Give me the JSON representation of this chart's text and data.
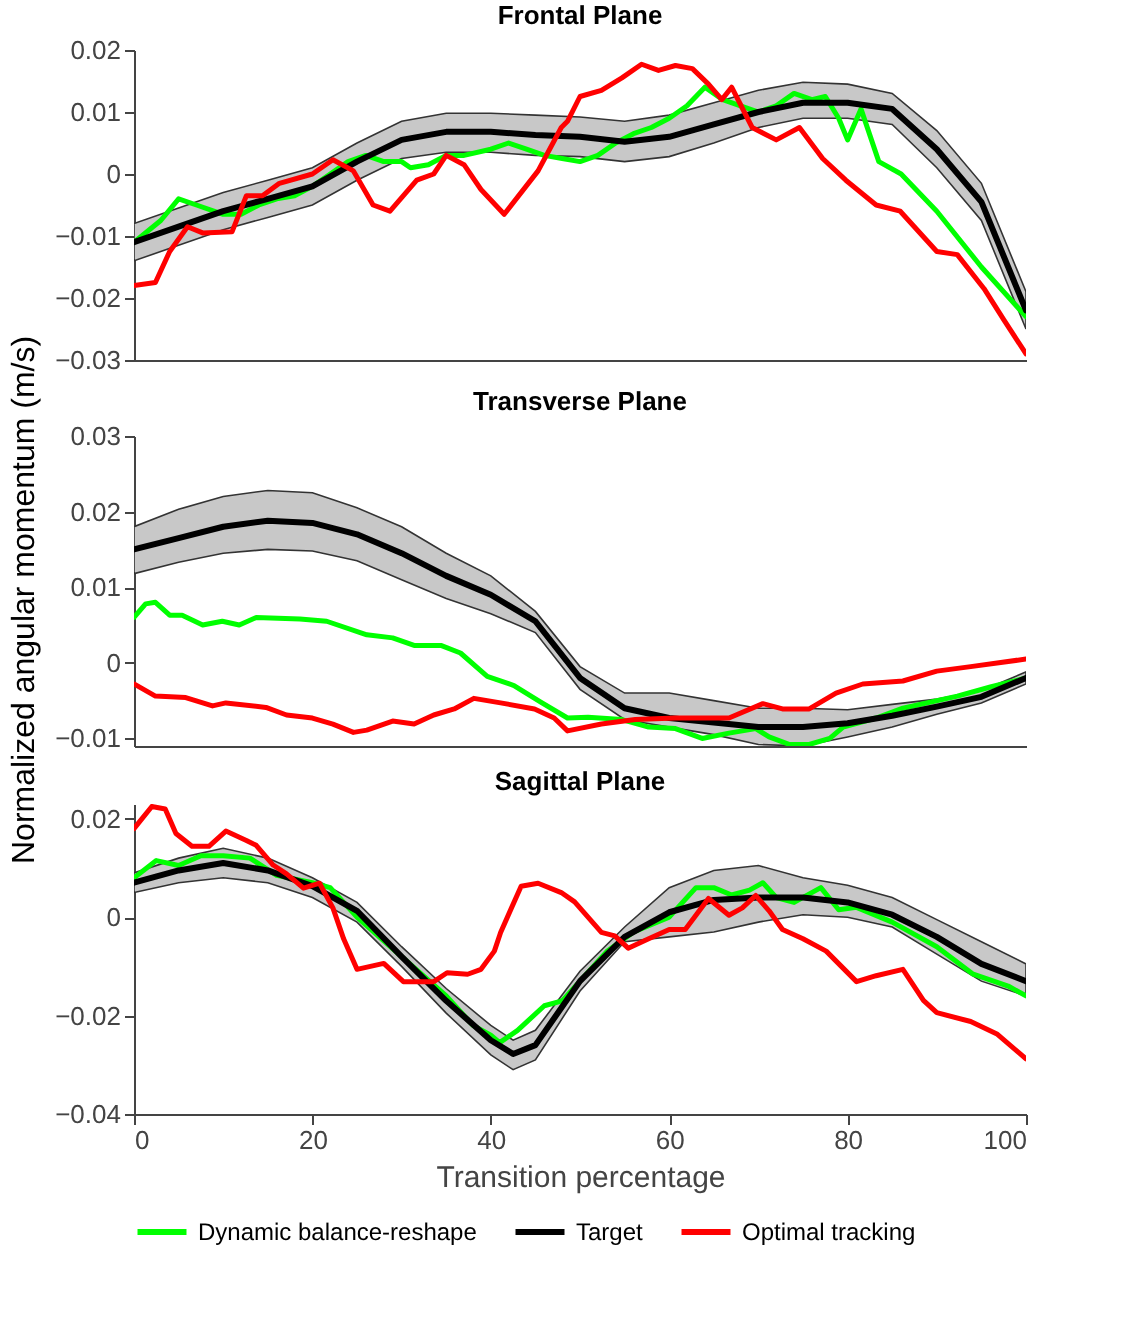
{
  "chart_data": [
    {
      "type": "line",
      "title": "Frontal Plane",
      "xlim": [
        0,
        100
      ],
      "xticks": [
        0,
        20,
        40,
        60,
        80,
        100
      ],
      "ylim": [
        -0.03,
        0.02
      ],
      "yticks": [
        -0.03,
        -0.02,
        -0.01,
        0,
        0.01,
        0.02
      ],
      "tick_labels": "y",
      "series": [
        {
          "color": "#00ff00",
          "x": [
            0,
            3,
            5,
            7,
            10,
            12,
            14,
            16,
            18,
            20,
            22,
            24,
            26,
            28,
            30,
            31,
            33,
            35,
            37,
            40,
            42,
            44,
            46,
            48,
            50,
            52,
            54,
            56,
            58,
            60,
            62,
            64,
            66,
            68,
            70,
            72,
            74,
            76,
            77.5,
            79,
            80,
            81.5,
            83.5,
            86,
            90,
            95,
            100
          ],
          "values": [
            -0.011,
            -0.0075,
            -0.004,
            -0.005,
            -0.0065,
            -0.0065,
            -0.005,
            -0.004,
            -0.0035,
            -0.002,
            0.0,
            0.002,
            0.003,
            0.002,
            0.002,
            0.001,
            0.0015,
            0.003,
            0.003,
            0.004,
            0.005,
            0.004,
            0.003,
            0.0025,
            0.002,
            0.003,
            0.005,
            0.0065,
            0.0075,
            0.009,
            0.011,
            0.014,
            0.012,
            0.011,
            0.01,
            0.011,
            0.013,
            0.012,
            0.0125,
            0.009,
            0.0055,
            0.0105,
            0.002,
            0.0,
            -0.006,
            -0.015,
            -0.023
          ]
        },
        {
          "color": "#000000",
          "x": [
            0,
            5,
            10,
            15,
            20,
            25,
            30,
            35,
            40,
            45,
            50,
            55,
            60,
            65,
            70,
            75,
            80,
            85,
            90,
            95,
            100
          ],
          "values": [
            -0.011,
            -0.0085,
            -0.006,
            -0.004,
            -0.002,
            0.002,
            0.0055,
            0.0068,
            0.0068,
            0.0063,
            0.006,
            0.0052,
            0.006,
            0.008,
            0.01,
            0.0115,
            0.0115,
            0.0105,
            0.004,
            -0.0045,
            -0.022
          ],
          "lower": [
            -0.014,
            -0.0115,
            -0.009,
            -0.007,
            -0.005,
            -0.001,
            0.0025,
            0.0035,
            0.0035,
            0.003,
            0.0028,
            0.002,
            0.0028,
            0.005,
            0.0075,
            0.009,
            0.009,
            0.008,
            0.001,
            -0.0075,
            -0.025
          ],
          "upper": [
            -0.008,
            -0.0055,
            -0.003,
            -0.001,
            0.001,
            0.005,
            0.0085,
            0.0098,
            0.0098,
            0.0095,
            0.0092,
            0.0085,
            0.0095,
            0.0115,
            0.0135,
            0.0148,
            0.0145,
            0.013,
            0.007,
            -0.0015,
            -0.019
          ]
        },
        {
          "color": "#ff0000",
          "x": [
            0,
            2.4,
            4,
            6,
            7.7,
            11,
            12.6,
            14.4,
            16.3,
            20,
            22.3,
            24.6,
            26.8,
            28.7,
            31.7,
            33.6,
            35,
            37,
            38.9,
            41.5,
            45.3,
            47.9,
            48.6,
            50,
            52.4,
            54.7,
            56.9,
            58.8,
            60.7,
            62.6,
            64.4,
            65.9,
            67,
            69.3,
            72,
            74.6,
            77.2,
            79.8,
            83.2,
            85.9,
            90,
            92.3,
            95.3,
            97.5,
            100
          ],
          "values": [
            -0.018,
            -0.0175,
            -0.0125,
            -0.0085,
            -0.0095,
            -0.0093,
            -0.0035,
            -0.0035,
            -0.0015,
            0.0,
            0.0023,
            0.0005,
            -0.005,
            -0.006,
            -0.001,
            0.0,
            0.003,
            0.0015,
            -0.0025,
            -0.0065,
            0.0005,
            0.0075,
            0.0085,
            0.0125,
            0.0135,
            0.0155,
            0.0177,
            0.0167,
            0.0175,
            0.017,
            0.0145,
            0.012,
            0.014,
            0.0075,
            0.0055,
            0.0075,
            0.0025,
            -0.001,
            -0.005,
            -0.006,
            -0.0125,
            -0.013,
            -0.0185,
            -0.0235,
            -0.029
          ]
        }
      ]
    },
    {
      "type": "line",
      "title": "Transverse Plane",
      "ylabel": "Normalized angular momentum (m/s)",
      "xlim": [
        0,
        100
      ],
      "xticks": [
        0,
        20,
        40,
        60,
        80,
        100
      ],
      "ylim": [
        -0.011,
        0.03
      ],
      "yticks": [
        -0.01,
        0,
        0.01,
        0.02,
        0.03
      ],
      "tick_labels": "y",
      "series": [
        {
          "color": "#00ff00",
          "x": [
            0,
            1.3,
            2.4,
            4,
            5.4,
            7.7,
            9.9,
            11.8,
            13.7,
            18.6,
            21.6,
            26.1,
            29,
            31.4,
            34.4,
            36.6,
            39.6,
            42.6,
            45.6,
            48.6,
            50.9,
            54.7,
            57.7,
            60.7,
            63.7,
            66.7,
            69.7,
            71.2,
            73.5,
            75.7,
            78,
            79.5,
            83.2,
            86.2,
            92.3,
            96,
            100
          ],
          "values": [
            0.006,
            0.0078,
            0.008,
            0.0063,
            0.0063,
            0.005,
            0.0055,
            0.005,
            0.006,
            0.0058,
            0.0055,
            0.0037,
            0.0033,
            0.0023,
            0.0023,
            0.0013,
            -0.0018,
            -0.003,
            -0.0052,
            -0.0073,
            -0.0072,
            -0.0075,
            -0.0085,
            -0.0087,
            -0.01,
            -0.0093,
            -0.0087,
            -0.0098,
            -0.0108,
            -0.0108,
            -0.01,
            -0.0085,
            -0.0073,
            -0.006,
            -0.0044,
            -0.0032,
            -0.002
          ]
        },
        {
          "color": "#000000",
          "x": [
            0,
            5,
            10,
            15,
            20,
            25,
            30,
            35,
            40,
            45,
            50,
            55,
            60,
            65,
            70,
            75,
            80,
            85,
            90,
            95,
            100
          ],
          "values": [
            0.015,
            0.0165,
            0.018,
            0.0188,
            0.0185,
            0.017,
            0.0145,
            0.0115,
            0.009,
            0.0055,
            -0.002,
            -0.006,
            -0.0073,
            -0.0079,
            -0.0085,
            -0.0085,
            -0.008,
            -0.007,
            -0.0058,
            -0.0045,
            -0.002
          ],
          "lower": [
            0.0118,
            0.0133,
            0.0145,
            0.015,
            0.0148,
            0.0135,
            0.011,
            0.0085,
            0.0065,
            0.004,
            -0.0035,
            -0.0075,
            -0.0085,
            -0.0095,
            -0.0108,
            -0.011,
            -0.0098,
            -0.0085,
            -0.0068,
            -0.0053,
            -0.0028
          ],
          "upper": [
            0.018,
            0.0203,
            0.022,
            0.0228,
            0.0225,
            0.0205,
            0.018,
            0.0145,
            0.0115,
            0.0068,
            -0.0005,
            -0.004,
            -0.004,
            -0.005,
            -0.006,
            -0.006,
            -0.0062,
            -0.0055,
            -0.0048,
            -0.0037,
            -0.0012
          ]
        },
        {
          "color": "#ff0000",
          "x": [
            0,
            2.4,
            5.8,
            8.8,
            10.3,
            14.8,
            17.1,
            20,
            22.3,
            24.6,
            26.1,
            29,
            31.4,
            33.6,
            35.9,
            38.1,
            41.1,
            44.9,
            47.1,
            48.6,
            52.4,
            56.2,
            60.7,
            66.7,
            70.5,
            72.7,
            75.7,
            78.7,
            81.7,
            86.2,
            90,
            93.8,
            100
          ],
          "values": [
            -0.0028,
            -0.0044,
            -0.0046,
            -0.0057,
            -0.0053,
            -0.0059,
            -0.0069,
            -0.0073,
            -0.0081,
            -0.0092,
            -0.0089,
            -0.0077,
            -0.0081,
            -0.0069,
            -0.0061,
            -0.0047,
            -0.0053,
            -0.0061,
            -0.0073,
            -0.009,
            -0.0081,
            -0.0075,
            -0.0073,
            -0.0073,
            -0.0054,
            -0.0061,
            -0.0061,
            -0.004,
            -0.0028,
            -0.0024,
            -0.0011,
            -0.0005,
            0.0005
          ]
        }
      ]
    },
    {
      "type": "line",
      "title": "Sagittal Plane",
      "xlabel": "Transition percentage",
      "xlim": [
        0,
        100
      ],
      "xticks": [
        0,
        20,
        40,
        60,
        80,
        100
      ],
      "ylim": [
        -0.04,
        0.023
      ],
      "yticks": [
        -0.04,
        -0.02,
        0,
        0.02
      ],
      "legend": "bottom",
      "series": [
        {
          "name": "Dynamic balance-reshape",
          "color": "#00ff00",
          "x": [
            0,
            2.5,
            5,
            7.5,
            10,
            13,
            16,
            20,
            22,
            25,
            30,
            35,
            38,
            40,
            41,
            43,
            46,
            48,
            50,
            53,
            56,
            60,
            63,
            65,
            67,
            69,
            70.5,
            72,
            74,
            77,
            79,
            81,
            85,
            90,
            94,
            98,
            100
          ],
          "values": [
            0.008,
            0.0115,
            0.0105,
            0.0125,
            0.0125,
            0.012,
            0.0085,
            0.007,
            0.006,
            0.0,
            -0.008,
            -0.016,
            -0.022,
            -0.024,
            -0.0255,
            -0.023,
            -0.018,
            -0.017,
            -0.013,
            -0.007,
            -0.003,
            0.0,
            0.006,
            0.006,
            0.0045,
            0.0055,
            0.007,
            0.004,
            0.003,
            0.006,
            0.0015,
            0.002,
            -0.001,
            -0.006,
            -0.0115,
            -0.014,
            -0.016
          ]
        },
        {
          "name": "Target",
          "color": "#000000",
          "x": [
            0,
            5,
            10,
            15,
            20,
            25,
            30,
            35,
            40,
            42.5,
            45,
            50,
            55,
            60,
            65,
            70,
            75,
            80,
            85,
            90,
            95,
            100
          ],
          "values": [
            0.007,
            0.0095,
            0.011,
            0.0095,
            0.0063,
            0.0013,
            -0.008,
            -0.017,
            -0.025,
            -0.0278,
            -0.026,
            -0.013,
            -0.004,
            0.001,
            0.0035,
            0.004,
            0.004,
            0.003,
            0.0005,
            -0.004,
            -0.0095,
            -0.013
          ],
          "lower": [
            0.005,
            0.007,
            0.008,
            0.007,
            0.004,
            -0.001,
            -0.01,
            -0.0195,
            -0.028,
            -0.031,
            -0.029,
            -0.015,
            -0.005,
            -0.004,
            -0.003,
            -0.001,
            0.0005,
            0.0,
            -0.002,
            -0.0075,
            -0.013,
            -0.016
          ],
          "upper": [
            0.009,
            0.012,
            0.014,
            0.012,
            0.008,
            0.003,
            -0.006,
            -0.0145,
            -0.022,
            -0.025,
            -0.023,
            -0.011,
            -0.002,
            0.006,
            0.0095,
            0.0105,
            0.008,
            0.0065,
            0.004,
            -0.0005,
            -0.005,
            -0.0095
          ]
        },
        {
          "name": "Optimal tracking",
          "color": "#ff0000",
          "x": [
            0,
            2,
            3.5,
            4.7,
            6.5,
            8.4,
            10.3,
            12.6,
            13.7,
            15.6,
            17.1,
            19,
            20.8,
            22.3,
            23.5,
            25,
            28,
            30.2,
            33.6,
            35.1,
            37.4,
            38.9,
            40.4,
            41.1,
            43.4,
            45.3,
            47.9,
            49.4,
            52.4,
            53.9,
            55.4,
            57.7,
            60,
            61.8,
            64.4,
            66.7,
            68.2,
            69.7,
            71.2,
            72.7,
            75,
            77.6,
            81,
            83.2,
            86.2,
            88.5,
            90,
            93.8,
            96.8,
            100
          ],
          "values": [
            0.018,
            0.0225,
            0.022,
            0.017,
            0.0144,
            0.0144,
            0.0175,
            0.0156,
            0.0146,
            0.0106,
            0.0088,
            0.0059,
            0.0069,
            0.0019,
            -0.0044,
            -0.0106,
            -0.0094,
            -0.0131,
            -0.0131,
            -0.0113,
            -0.0116,
            -0.0106,
            -0.0069,
            -0.0031,
            0.0063,
            0.0069,
            0.005,
            0.0031,
            -0.0031,
            -0.0038,
            -0.0063,
            -0.0044,
            -0.0025,
            -0.0025,
            0.0038,
            0.0004,
            0.0019,
            0.0044,
            0.0013,
            -0.0025,
            -0.0044,
            -0.0069,
            -0.0131,
            -0.0119,
            -0.0106,
            -0.0169,
            -0.0194,
            -0.0212,
            -0.0238,
            -0.0288
          ]
        }
      ]
    }
  ]
}
